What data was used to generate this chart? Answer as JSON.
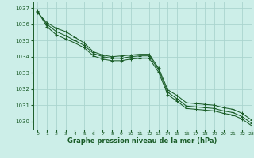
{
  "background_color": "#cceee8",
  "grid_color": "#aad4ce",
  "line_color": "#1a5c28",
  "xlabel": "Graphe pression niveau de la mer (hPa)",
  "xlim": [
    -0.5,
    23
  ],
  "ylim": [
    1029.5,
    1037.4
  ],
  "yticks": [
    1030,
    1031,
    1032,
    1033,
    1034,
    1035,
    1036,
    1037
  ],
  "xticks": [
    0,
    1,
    2,
    3,
    4,
    5,
    6,
    7,
    8,
    9,
    10,
    11,
    12,
    13,
    14,
    15,
    16,
    17,
    18,
    19,
    20,
    21,
    22,
    23
  ],
  "series": [
    [
      1036.7,
      1036.1,
      1035.75,
      1035.55,
      1035.2,
      1034.85,
      1034.3,
      1034.1,
      1034.0,
      1034.05,
      1034.1,
      1034.15,
      1034.15,
      1033.3,
      1031.95,
      1031.6,
      1031.15,
      1031.1,
      1031.05,
      1031.0,
      1030.85,
      1030.75,
      1030.5,
      1030.1
    ],
    [
      1036.8,
      1035.85,
      1035.35,
      1035.1,
      1034.85,
      1034.55,
      1034.05,
      1033.85,
      1033.75,
      1033.75,
      1033.85,
      1033.9,
      1033.9,
      1033.05,
      1031.65,
      1031.25,
      1030.8,
      1030.75,
      1030.7,
      1030.65,
      1030.5,
      1030.4,
      1030.15,
      1029.75
    ],
    [
      1036.75,
      1036.0,
      1035.55,
      1035.3,
      1035.0,
      1034.7,
      1034.2,
      1034.0,
      1033.9,
      1033.9,
      1034.0,
      1034.05,
      1034.05,
      1033.2,
      1031.8,
      1031.4,
      1030.95,
      1030.9,
      1030.85,
      1030.8,
      1030.65,
      1030.55,
      1030.3,
      1029.9
    ]
  ]
}
